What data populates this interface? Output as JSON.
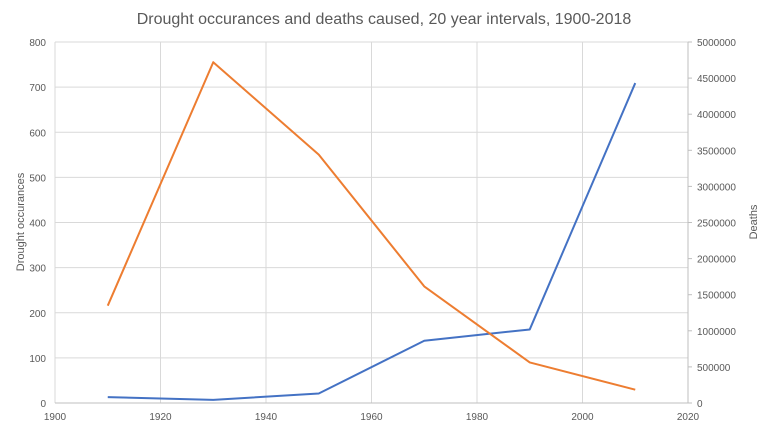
{
  "chart_data": {
    "type": "line",
    "title": "Drought occurances and deaths caused, 20 year intervals, 1900-2018",
    "xlabel": "",
    "ylabel": "Drought occurances",
    "y2label": "Deaths",
    "xlim": [
      1900,
      2020
    ],
    "ylim": [
      0,
      800
    ],
    "y2lim": [
      0,
      5000000
    ],
    "xticks": [
      "1900",
      "1920",
      "1940",
      "1960",
      "1980",
      "2000",
      "2020"
    ],
    "yticks": [
      "0",
      "100",
      "200",
      "300",
      "400",
      "500",
      "600",
      "700",
      "800"
    ],
    "y2ticks": [
      "0",
      "500000",
      "1000000",
      "1500000",
      "2000000",
      "2500000",
      "3000000",
      "3500000",
      "4000000",
      "4500000",
      "5000000"
    ],
    "grid": true,
    "x": [
      1910,
      1930,
      1950,
      1970,
      1990,
      2010
    ],
    "series": [
      {
        "axis": "left",
        "color": "#4472C4",
        "values": [
          13,
          7,
          21,
          138,
          163,
          709
        ]
      },
      {
        "axis": "right",
        "color": "#ED7D31",
        "values": [
          1348000,
          4720000,
          3440000,
          1615000,
          562000,
          184000
        ]
      }
    ]
  }
}
